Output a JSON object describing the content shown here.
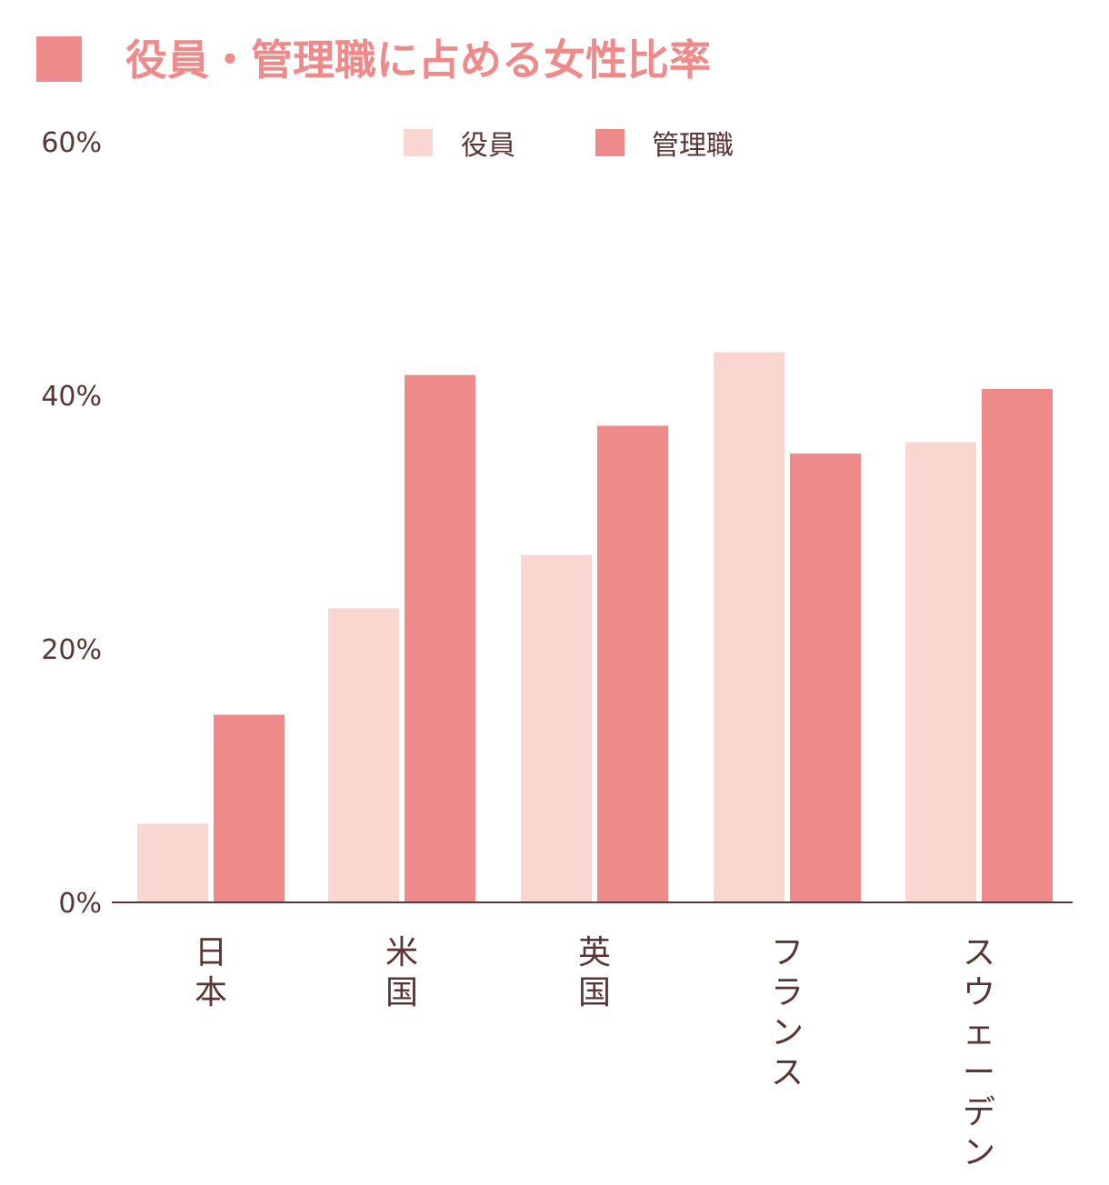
{
  "colors": {
    "title": "#ee8a8a",
    "title_marker": "#ee8a8a",
    "text": "#5a3535",
    "axis": "#5a3535",
    "series_officers": "#fad6d0",
    "series_managers": "#ee8a8a"
  },
  "chart_data": {
    "type": "bar",
    "title": "役員・管理職に占める女性比率",
    "xlabel": "",
    "ylabel": "",
    "ylim": [
      0,
      60
    ],
    "yticks": [
      "0%",
      "20%",
      "40%",
      "60%"
    ],
    "ytick_values": [
      0,
      20,
      40,
      60
    ],
    "grid": false,
    "legend_position": "top-center",
    "categories": [
      "日本",
      "米国",
      "英国",
      "フランス",
      "スウェーデン"
    ],
    "series": [
      {
        "name": "役員",
        "values": [
          6.2,
          23.2,
          27.4,
          43.4,
          36.3
        ]
      },
      {
        "name": "管理職",
        "values": [
          14.8,
          41.6,
          37.6,
          35.4,
          40.5
        ]
      }
    ]
  }
}
